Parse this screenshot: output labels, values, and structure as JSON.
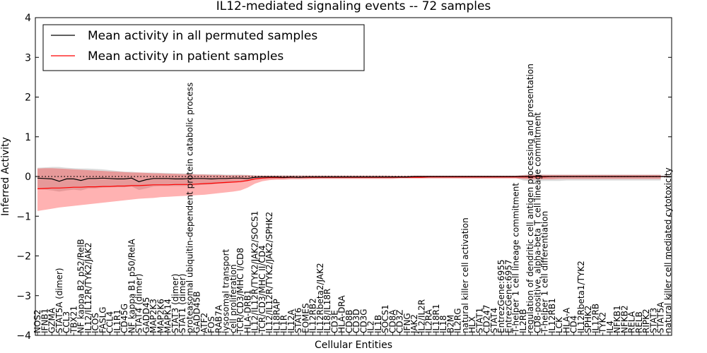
{
  "chart_data": {
    "type": "line",
    "title": "IL12-mediated signaling events -- 72 samples",
    "xlabel": "Cellular Entities",
    "ylabel": "Inferred Activity",
    "ylim": [
      -4,
      4
    ],
    "yticks": [
      -4,
      -3,
      -2,
      -1,
      0,
      1,
      2,
      3,
      4
    ],
    "legend": {
      "placement": "top-left",
      "entries": [
        {
          "label": "Mean activity in all permuted samples",
          "color": "#000000"
        },
        {
          "label": "Mean activity in patient samples",
          "color": "#ff0000"
        }
      ]
    },
    "categories": [
      "NOS2",
      "IFNB1",
      "GZMA",
      "STAT5A (dimer)",
      "CCL3",
      "TBX21",
      "NF kappa B2 p52/RelB",
      "IL12/IL12R/TYK2/JAK2",
      "ICOS",
      "FASLG",
      "CCL4",
      "IL1R1",
      "CD45G",
      "NF kappa B1 p50/RelA",
      "STAT4 (dimer)",
      "GADD45",
      "MAP2K3",
      "MAP2K6",
      "MAPK14",
      "STAT3 (dimer)",
      "STAT1 (dimer)",
      "proteasomal ubiquitin-dependent protein catabolic process",
      "GADD45B",
      "ATF2",
      "FOS",
      "RAB7A",
      "lysosomal transport",
      "cell proliferation",
      "TCR/CD3/MHC I/CD8",
      "HLA-DRB1",
      "IL12/IL12R/TYK2/JAK2/SOCS1",
      "TCR/CD3/MHC II/CD4",
      "IL12/IL12R/TYK2/JAK2/SPHK2",
      "IL18RAP",
      "IL1R",
      "IL12A",
      "STAT6",
      "EOMES",
      "IL12RB2",
      "IL12Rbeta2/JAK2",
      "IL18/IL18R",
      "CD3E",
      "HLA-DRA",
      "CD8B",
      "CD3D",
      "CD3G",
      "IL2",
      "IL1B",
      "SOCS1",
      "CD8A",
      "CD3Z",
      "IFNG",
      "JAK2",
      "IL2/IL2R",
      "IL2RA",
      "IL18R1",
      "IL18",
      "B2M",
      "IL2RG",
      "natural killer cell activation",
      "HLX",
      "STAT1",
      "CD247",
      "STAT4",
      "EntrezGene:6955",
      "EntrezGene:6957",
      "T-helper 1 cell lineage commitment",
      "IL2RB",
      "regulation of dendritic cell antigen processing and presentation",
      "CD8-positive, alpha-beta T cell lineage commitment",
      "T-helper 1 cell differentiation",
      "IL12RB1",
      "LCK",
      "HLA-A",
      "CD4",
      "IL12Rbeta1/TYK2",
      "SPHK2",
      "IL12RB",
      "TYK2",
      "IL4",
      "NFKB1",
      "NFKB2",
      "RELA",
      "RELB",
      "RIPK2",
      "STAT3",
      "STAT5A",
      "natural killer cell mediated cytotoxicity"
    ],
    "series": [
      {
        "name": "Mean activity in all permuted samples",
        "color": "#000000",
        "values": [
          -0.04,
          -0.05,
          -0.06,
          -0.12,
          -0.06,
          -0.06,
          -0.1,
          -0.05,
          -0.05,
          -0.04,
          -0.05,
          -0.06,
          -0.06,
          -0.04,
          -0.13,
          -0.08,
          -0.05,
          -0.05,
          -0.05,
          -0.06,
          -0.06,
          -0.05,
          -0.05,
          -0.05,
          -0.06,
          -0.05,
          -0.05,
          -0.04,
          -0.04,
          -0.05,
          -0.02,
          -0.01,
          -0.01,
          -0.01,
          -0.02,
          -0.01,
          -0.02,
          -0.01,
          -0.01,
          -0.01,
          -0.01,
          -0.01,
          -0.01,
          -0.01,
          -0.01,
          -0.01,
          -0.01,
          -0.01,
          -0.01,
          -0.01,
          -0.01,
          -0.01,
          0,
          0,
          0,
          0,
          0,
          0,
          0,
          0,
          0,
          0,
          0,
          0,
          0,
          0,
          0,
          0,
          0,
          0,
          0,
          0,
          0,
          0,
          0,
          0,
          0,
          0,
          0,
          0,
          0,
          0,
          0,
          0,
          0,
          0,
          0,
          0
        ]
      },
      {
        "name": "Mean activity in patient samples",
        "color": "#ff0000",
        "values": [
          -0.31,
          -0.3,
          -0.29,
          -0.29,
          -0.28,
          -0.27,
          -0.27,
          -0.26,
          -0.26,
          -0.25,
          -0.25,
          -0.24,
          -0.24,
          -0.23,
          -0.23,
          -0.22,
          -0.21,
          -0.21,
          -0.21,
          -0.2,
          -0.2,
          -0.2,
          -0.19,
          -0.18,
          -0.17,
          -0.16,
          -0.15,
          -0.14,
          -0.13,
          -0.1,
          -0.06,
          -0.04,
          -0.03,
          -0.03,
          -0.03,
          -0.02,
          -0.02,
          -0.02,
          -0.02,
          -0.02,
          -0.02,
          -0.02,
          -0.02,
          -0.02,
          -0.02,
          -0.02,
          -0.02,
          -0.02,
          -0.02,
          -0.02,
          -0.02,
          -0.02,
          -0.02,
          -0.02,
          -0.01,
          -0.01,
          -0.01,
          -0.01,
          -0.01,
          -0.01,
          -0.01,
          -0.01,
          -0.01,
          -0.01,
          -0.01,
          -0.01,
          -0.01,
          -0.01,
          -0.01,
          -0.01,
          -0.01,
          0,
          0,
          0,
          0,
          0,
          0,
          0,
          0,
          0,
          0,
          0,
          0,
          0,
          0,
          0,
          0,
          0
        ]
      }
    ],
    "bands": [
      {
        "name": "permuted range",
        "color": "#b0b0b0",
        "upper": [
          0.22,
          0.23,
          0.24,
          0.24,
          0.22,
          0.21,
          0.2,
          0.2,
          0.19,
          0.18,
          0.16,
          0.14,
          0.12,
          0.12,
          0.1,
          0.1,
          0.1,
          0.09,
          0.09,
          0.08,
          0.08,
          0.07,
          0.06,
          0.06,
          0.06,
          0.06,
          0.05,
          0.05,
          0.05,
          0.04,
          0.03,
          0.03,
          0.03,
          0.03,
          0.03,
          0.03,
          0.03,
          0.03,
          0.03,
          0.03,
          0.03,
          0.03,
          0.03,
          0.03,
          0.03,
          0.03,
          0.03,
          0.03,
          0.03,
          0.02,
          0.02,
          0.02,
          0.02,
          0.02,
          0.02,
          0.02,
          0.02,
          0.02,
          0.02,
          0.02,
          0.02,
          0.02,
          0.02,
          0.02,
          0.02,
          0.02,
          0.02,
          0.04,
          0.06,
          0.06,
          0.05,
          0.05,
          0.05,
          0.05,
          0.05,
          0.05,
          0.05,
          0.05,
          0.05,
          0.05,
          0.05,
          0.05,
          0.05,
          0.05,
          0.05,
          0.05,
          0.05
        ],
        "lower": [
          -0.32,
          -0.33,
          -0.35,
          -0.38,
          -0.35,
          -0.33,
          -0.35,
          -0.3,
          -0.3,
          -0.28,
          -0.27,
          -0.27,
          -0.27,
          -0.25,
          -0.34,
          -0.3,
          -0.25,
          -0.24,
          -0.24,
          -0.24,
          -0.24,
          -0.23,
          -0.22,
          -0.21,
          -0.2,
          -0.18,
          -0.17,
          -0.15,
          -0.14,
          -0.12,
          -0.08,
          -0.07,
          -0.06,
          -0.06,
          -0.06,
          -0.06,
          -0.06,
          -0.05,
          -0.05,
          -0.05,
          -0.05,
          -0.05,
          -0.05,
          -0.05,
          -0.05,
          -0.05,
          -0.05,
          -0.05,
          -0.05,
          -0.05,
          -0.04,
          -0.04,
          -0.04,
          -0.04,
          -0.04,
          -0.04,
          -0.04,
          -0.04,
          -0.04,
          -0.04,
          -0.04,
          -0.04,
          -0.04,
          -0.04,
          -0.04,
          -0.04,
          -0.04,
          -0.1,
          -0.12,
          -0.12,
          -0.11,
          -0.11,
          -0.11,
          -0.1,
          -0.1,
          -0.1,
          -0.1,
          -0.1,
          -0.1,
          -0.1,
          -0.1,
          -0.1,
          -0.1,
          -0.1,
          -0.1,
          -0.1,
          -0.1
        ]
      },
      {
        "name": "patient range",
        "color": "#ff0000",
        "upper": [
          0.2,
          0.21,
          0.21,
          0.2,
          0.19,
          0.18,
          0.17,
          0.16,
          0.15,
          0.14,
          0.13,
          0.12,
          0.11,
          0.1,
          0.1,
          0.09,
          0.08,
          0.08,
          0.07,
          0.07,
          0.06,
          0.06,
          0.05,
          0.05,
          0.04,
          0.04,
          0.03,
          0.03,
          0.03,
          0.03,
          0.02,
          0.02,
          0.02,
          0.02,
          0.02,
          0.02,
          0.02,
          0.02,
          0.02,
          0.02,
          0.02,
          0.02,
          0.02,
          0.02,
          0.02,
          0.02,
          0.02,
          0.02,
          0.02,
          0.02,
          0.02,
          0.02,
          0.02,
          0.02,
          0.02,
          0.02,
          0.02,
          0.02,
          0.02,
          0.02,
          0.02,
          0.02,
          0.02,
          0.02,
          0.02,
          0.02,
          0.02,
          0.03,
          0.04,
          0.04,
          0.04,
          0.04,
          0.04,
          0.04,
          0.04,
          0.04,
          0.04,
          0.04,
          0.04,
          0.04,
          0.04,
          0.04,
          0.04,
          0.04,
          0.04,
          0.04,
          0.04
        ],
        "lower": [
          -0.87,
          -0.84,
          -0.81,
          -0.78,
          -0.76,
          -0.74,
          -0.72,
          -0.7,
          -0.68,
          -0.66,
          -0.64,
          -0.62,
          -0.6,
          -0.58,
          -0.56,
          -0.55,
          -0.54,
          -0.52,
          -0.51,
          -0.5,
          -0.49,
          -0.48,
          -0.47,
          -0.46,
          -0.44,
          -0.42,
          -0.4,
          -0.38,
          -0.35,
          -0.28,
          -0.18,
          -0.12,
          -0.09,
          -0.08,
          -0.08,
          -0.07,
          -0.07,
          -0.07,
          -0.06,
          -0.06,
          -0.06,
          -0.06,
          -0.06,
          -0.06,
          -0.06,
          -0.06,
          -0.06,
          -0.06,
          -0.06,
          -0.06,
          -0.05,
          -0.05,
          -0.05,
          -0.05,
          -0.05,
          -0.05,
          -0.05,
          -0.05,
          -0.05,
          -0.05,
          -0.05,
          -0.05,
          -0.05,
          -0.05,
          -0.05,
          -0.05,
          -0.05,
          -0.06,
          -0.07,
          -0.07,
          -0.07,
          -0.07,
          -0.06,
          -0.06,
          -0.06,
          -0.06,
          -0.06,
          -0.06,
          -0.06,
          -0.06,
          -0.06,
          -0.06,
          -0.06,
          -0.06,
          -0.06,
          -0.06,
          -0.06
        ]
      }
    ]
  }
}
